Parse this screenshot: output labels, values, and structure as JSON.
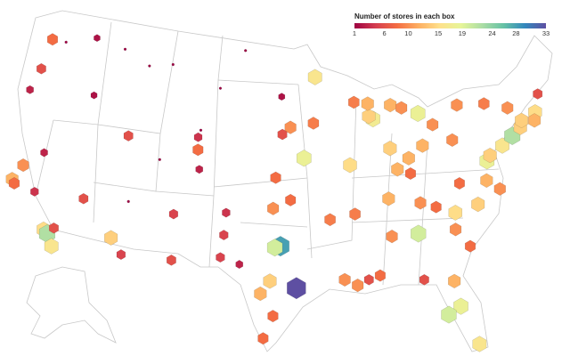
{
  "legend": {
    "title": "Number of stores in each box",
    "ticks": [
      "1",
      "6",
      "10",
      "15",
      "19",
      "24",
      "28",
      "33"
    ],
    "min": 1,
    "max": 33,
    "colors": [
      "#9e0142",
      "#d53e4f",
      "#f46d43",
      "#fdae61",
      "#fee08b",
      "#e6f598",
      "#abdda4",
      "#66c2a5",
      "#3288bd",
      "#5e4fa2"
    ]
  },
  "map": {
    "projection": "albers-usa",
    "bins_lon_lat_count": [
      [
        -122.3,
        47.6,
        8
      ],
      [
        -122.5,
        45.5,
        6
      ],
      [
        -117.4,
        47.7,
        2
      ],
      [
        -121.5,
        38.6,
        10
      ],
      [
        -122.2,
        37.6,
        12
      ],
      [
        -121.9,
        37.3,
        8
      ],
      [
        -119.8,
        36.7,
        4
      ],
      [
        -118.2,
        34.0,
        15
      ],
      [
        -117.8,
        33.7,
        22
      ],
      [
        -117.2,
        32.8,
        16
      ],
      [
        -117.3,
        34.1,
        6
      ],
      [
        -115.1,
        36.2,
        6
      ],
      [
        -112.0,
        33.4,
        14
      ],
      [
        -110.9,
        32.2,
        5
      ],
      [
        -111.9,
        40.7,
        6
      ],
      [
        -104.9,
        39.7,
        8
      ],
      [
        -106.6,
        35.1,
        5
      ],
      [
        -106.4,
        31.8,
        6
      ],
      [
        -116.2,
        43.6,
        2
      ],
      [
        -108.5,
        45.8,
        1
      ],
      [
        -96.8,
        32.8,
        28
      ],
      [
        -97.3,
        32.7,
        20
      ],
      [
        -95.4,
        29.8,
        33
      ],
      [
        -98.5,
        29.4,
        12
      ],
      [
        -97.7,
        30.3,
        14
      ],
      [
        -97.5,
        35.5,
        10
      ],
      [
        -95.9,
        36.1,
        8
      ],
      [
        -94.6,
        39.1,
        18
      ],
      [
        -90.2,
        38.6,
        15
      ],
      [
        -87.6,
        41.9,
        17
      ],
      [
        -88.0,
        42.1,
        14
      ],
      [
        -83.0,
        42.3,
        18
      ],
      [
        -93.3,
        44.9,
        16
      ],
      [
        -86.2,
        39.8,
        14
      ],
      [
        -84.5,
        39.1,
        12
      ],
      [
        -83.0,
        40.0,
        12
      ],
      [
        -81.7,
        41.5,
        10
      ],
      [
        -80.0,
        40.4,
        10
      ],
      [
        -84.4,
        33.7,
        20
      ],
      [
        -86.8,
        36.2,
        12
      ],
      [
        -86.8,
        33.5,
        10
      ],
      [
        -90.0,
        35.1,
        9
      ],
      [
        -90.1,
        30.0,
        10
      ],
      [
        -81.4,
        28.5,
        18
      ],
      [
        -82.5,
        27.9,
        20
      ],
      [
        -80.2,
        25.8,
        16
      ],
      [
        -81.7,
        30.3,
        12
      ],
      [
        -80.8,
        35.2,
        15
      ],
      [
        -78.6,
        35.8,
        14
      ],
      [
        -77.0,
        38.9,
        18
      ],
      [
        -76.6,
        39.3,
        14
      ],
      [
        -75.2,
        40.0,
        16
      ],
      [
        -74.0,
        40.7,
        22
      ],
      [
        -73.0,
        41.3,
        14
      ],
      [
        -71.1,
        42.4,
        15
      ],
      [
        -70.3,
        43.7,
        6
      ],
      [
        -73.8,
        42.7,
        10
      ],
      [
        -76.1,
        43.0,
        9
      ],
      [
        -78.9,
        42.9,
        10
      ],
      [
        -77.4,
        37.5,
        12
      ],
      [
        -76.3,
        36.9,
        10
      ],
      [
        -79.9,
        32.8,
        8
      ],
      [
        -81.0,
        34.0,
        10
      ],
      [
        -92.3,
        34.7,
        9
      ],
      [
        -95.9,
        41.3,
        10
      ],
      [
        -93.6,
        41.6,
        9
      ],
      [
        -89.4,
        43.1,
        9
      ],
      [
        -88.0,
        43.0,
        12
      ],
      [
        -85.7,
        38.3,
        12
      ],
      [
        -84.5,
        38.0,
        8
      ],
      [
        -91.2,
        30.4,
        10
      ],
      [
        -89.1,
        30.4,
        6
      ],
      [
        -88.1,
        30.7,
        8
      ],
      [
        -97.4,
        27.8,
        8
      ],
      [
        -98.2,
        26.2,
        8
      ],
      [
        -101.8,
        35.2,
        4
      ],
      [
        -101.9,
        33.6,
        5
      ],
      [
        -97.3,
        37.7,
        8
      ],
      [
        -96.7,
        40.8,
        6
      ],
      [
        -100.8,
        46.8,
        1
      ],
      [
        -96.8,
        43.5,
        2
      ],
      [
        -103.2,
        44.1,
        1
      ],
      [
        -84.3,
        30.4,
        6
      ],
      [
        -85.7,
        42.9,
        12
      ],
      [
        -84.6,
        42.7,
        10
      ],
      [
        -83.9,
        35.9,
        10
      ],
      [
        -82.5,
        35.6,
        8
      ],
      [
        -80.0,
        37.3,
        8
      ],
      [
        -72.7,
        41.8,
        14
      ],
      [
        -71.4,
        41.8,
        12
      ],
      [
        -120.7,
        47.4,
        1
      ],
      [
        -123.0,
        44.0,
        3
      ],
      [
        -119.8,
        39.5,
        3
      ],
      [
        -104.8,
        41.1,
        1
      ],
      [
        -105.0,
        40.6,
        4
      ],
      [
        -104.6,
        38.3,
        3
      ],
      [
        -111.0,
        45.7,
        1
      ],
      [
        -114.0,
        46.9,
        1
      ],
      [
        -110.9,
        36.0,
        1
      ],
      [
        -108.5,
        39.0,
        1
      ],
      [
        -102.1,
        32.0,
        5
      ],
      [
        -100.4,
        31.5,
        3
      ]
    ]
  }
}
